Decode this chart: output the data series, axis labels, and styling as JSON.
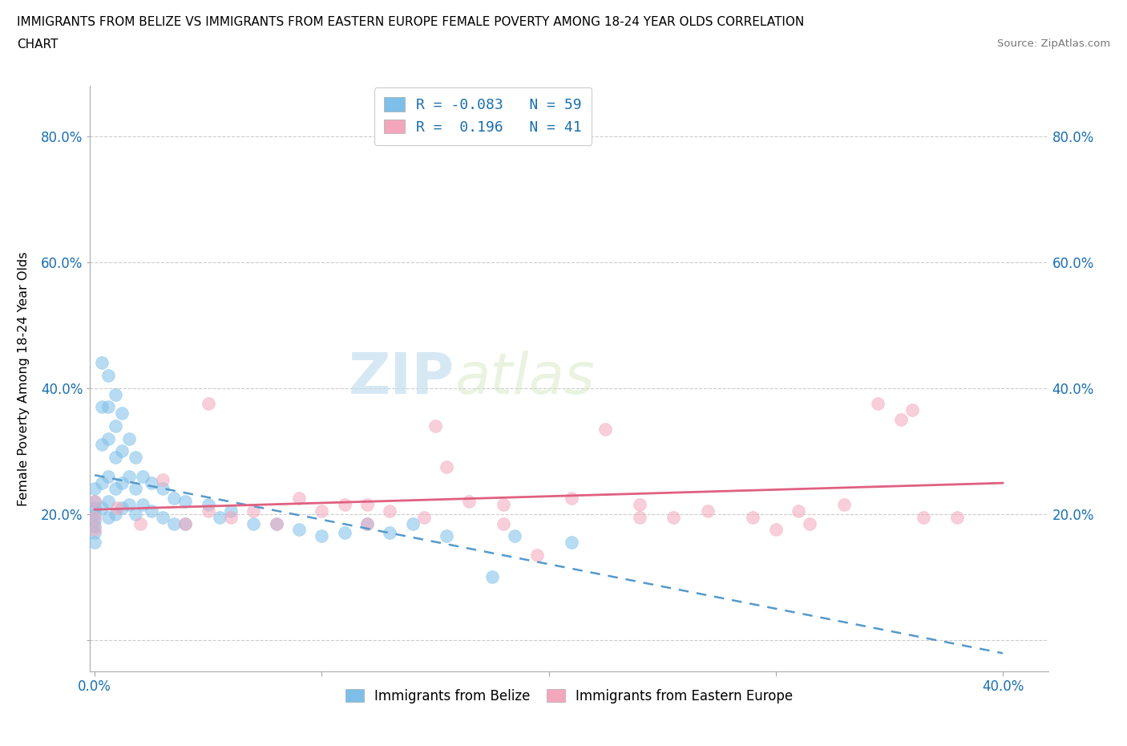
{
  "title_line1": "IMMIGRANTS FROM BELIZE VS IMMIGRANTS FROM EASTERN EUROPE FEMALE POVERTY AMONG 18-24 YEAR OLDS CORRELATION",
  "title_line2": "CHART",
  "source": "Source: ZipAtlas.com",
  "ylabel": "Female Poverty Among 18-24 Year Olds",
  "xlim": [
    -0.002,
    0.42
  ],
  "ylim": [
    -0.05,
    0.88
  ],
  "xtick_positions": [
    0.0,
    0.1,
    0.2,
    0.3,
    0.4
  ],
  "xticklabels": [
    "0.0%",
    "",
    "",
    "",
    "40.0%"
  ],
  "ytick_positions": [
    0.0,
    0.2,
    0.4,
    0.6,
    0.8
  ],
  "yticklabels": [
    "",
    "20.0%",
    "40.0%",
    "60.0%",
    "80.0%"
  ],
  "belize_color": "#7dbfe8",
  "eastern_europe_color": "#f4a7bc",
  "belize_line_color": "#5599cc",
  "eastern_europe_line_color": "#e06080",
  "legend_R_color": "#1a6faf",
  "belize_R": -0.083,
  "belize_N": 59,
  "eastern_europe_R": 0.196,
  "eastern_europe_N": 41,
  "belize_x": [
    0.0,
    0.0,
    0.0,
    0.0,
    0.0,
    0.0,
    0.0,
    0.0,
    0.003,
    0.003,
    0.003,
    0.003,
    0.003,
    0.006,
    0.006,
    0.006,
    0.006,
    0.006,
    0.006,
    0.009,
    0.009,
    0.009,
    0.009,
    0.009,
    0.012,
    0.012,
    0.012,
    0.012,
    0.015,
    0.015,
    0.015,
    0.018,
    0.018,
    0.018,
    0.021,
    0.021,
    0.025,
    0.025,
    0.03,
    0.03,
    0.035,
    0.035,
    0.04,
    0.04,
    0.05,
    0.055,
    0.06,
    0.07,
    0.08,
    0.09,
    0.1,
    0.11,
    0.12,
    0.13,
    0.14,
    0.155,
    0.175,
    0.185,
    0.21
  ],
  "belize_y": [
    0.24,
    0.22,
    0.21,
    0.2,
    0.19,
    0.18,
    0.17,
    0.155,
    0.44,
    0.37,
    0.31,
    0.25,
    0.21,
    0.42,
    0.37,
    0.32,
    0.26,
    0.22,
    0.195,
    0.39,
    0.34,
    0.29,
    0.24,
    0.2,
    0.36,
    0.3,
    0.25,
    0.21,
    0.32,
    0.26,
    0.215,
    0.29,
    0.24,
    0.2,
    0.26,
    0.215,
    0.25,
    0.205,
    0.24,
    0.195,
    0.225,
    0.185,
    0.22,
    0.185,
    0.215,
    0.195,
    0.205,
    0.185,
    0.185,
    0.175,
    0.165,
    0.17,
    0.185,
    0.17,
    0.185,
    0.165,
    0.1,
    0.165,
    0.155
  ],
  "eastern_europe_x": [
    0.0,
    0.0,
    0.0,
    0.01,
    0.02,
    0.03,
    0.04,
    0.05,
    0.06,
    0.07,
    0.08,
    0.09,
    0.1,
    0.11,
    0.12,
    0.13,
    0.145,
    0.155,
    0.165,
    0.18,
    0.195,
    0.21,
    0.225,
    0.24,
    0.255,
    0.27,
    0.29,
    0.31,
    0.315,
    0.33,
    0.345,
    0.355,
    0.365,
    0.12,
    0.18,
    0.24,
    0.3,
    0.36,
    0.05,
    0.15,
    0.38
  ],
  "eastern_europe_y": [
    0.22,
    0.195,
    0.175,
    0.21,
    0.185,
    0.255,
    0.185,
    0.375,
    0.195,
    0.205,
    0.185,
    0.225,
    0.205,
    0.215,
    0.215,
    0.205,
    0.195,
    0.275,
    0.22,
    0.215,
    0.135,
    0.225,
    0.335,
    0.215,
    0.195,
    0.205,
    0.195,
    0.205,
    0.185,
    0.215,
    0.375,
    0.35,
    0.195,
    0.185,
    0.185,
    0.195,
    0.175,
    0.365,
    0.205,
    0.34,
    0.195
  ]
}
